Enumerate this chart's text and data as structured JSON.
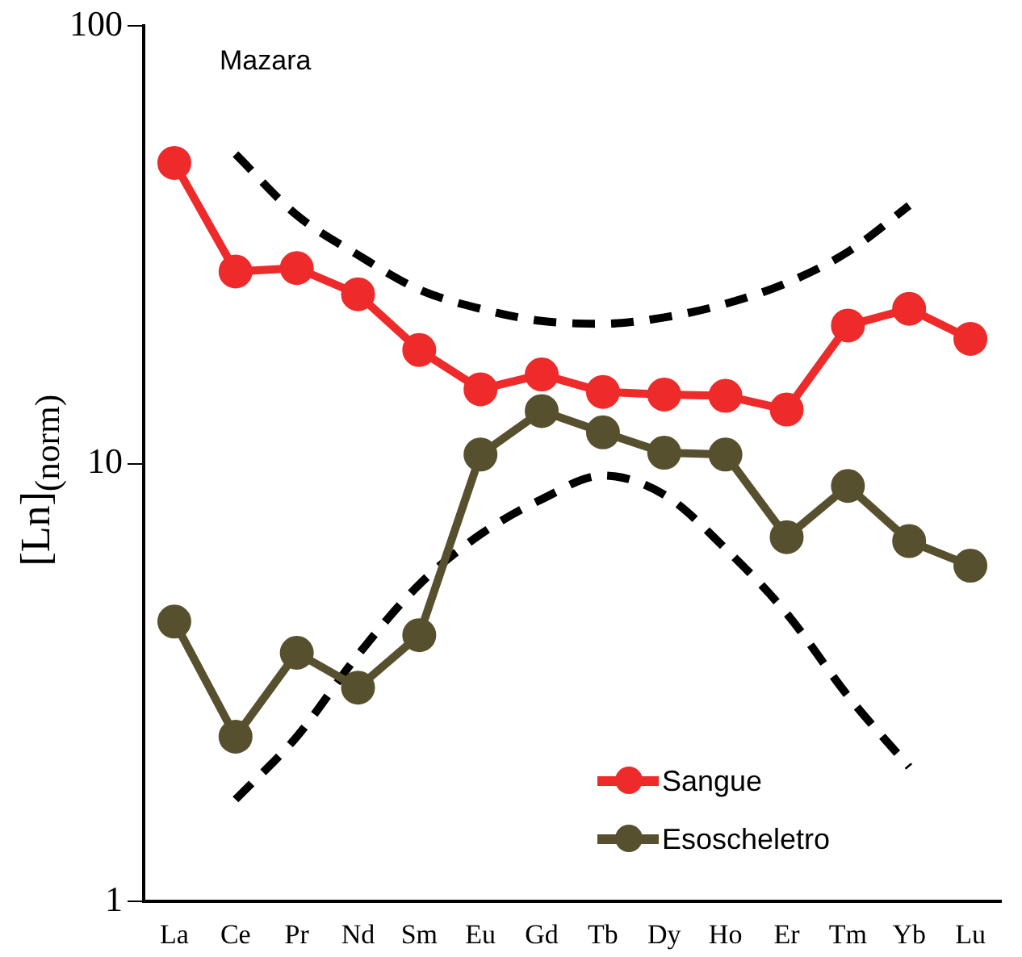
{
  "chart_data": {
    "type": "line",
    "title": "Mazara",
    "ylabel": "[Ln]$_{(norm)}$",
    "categories": [
      "La",
      "Ce",
      "Pr",
      "Nd",
      "Sm",
      "Eu",
      "Gd",
      "Tb",
      "Dy",
      "Ho",
      "Er",
      "Tm",
      "Yb",
      "Lu"
    ],
    "log": "y",
    "ylim": [
      1,
      100
    ],
    "yticks": [
      1,
      10,
      100
    ],
    "grid": false,
    "legend": "bottom",
    "marker": "circle",
    "line_style": "solid",
    "series": [
      {
        "name": "Sangue",
        "color": "#ee2a2a",
        "values": [
          48.7,
          27.5,
          28,
          24.4,
          18.2,
          14.8,
          16,
          14.6,
          14.4,
          14.3,
          13.3,
          20.7,
          22.6,
          19.3
        ]
      },
      {
        "name": "Esoscheletro",
        "color": "#57502f",
        "values": [
          4.36,
          2.38,
          3.7,
          3.08,
          4.06,
          10.5,
          13.2,
          11.8,
          10.6,
          10.5,
          6.8,
          8.9,
          6.66,
          5.85
        ]
      },
      {
        "color": "#000000",
        "marker": "none",
        "line_style": "dashed",
        "values": [
          null,
          51,
          37,
          30,
          25,
          22.6,
          21.2,
          20.9,
          21.6,
          23.2,
          25.9,
          30.5,
          38.9,
          null
        ]
      },
      {
        "color": "#000000",
        "marker": "none",
        "line_style": "dashed",
        "values": [
          null,
          1.71,
          2.38,
          3.66,
          5.3,
          6.9,
          8.3,
          9.4,
          8.5,
          6.4,
          4.55,
          2.95,
          2.03,
          null
        ]
      }
    ]
  }
}
